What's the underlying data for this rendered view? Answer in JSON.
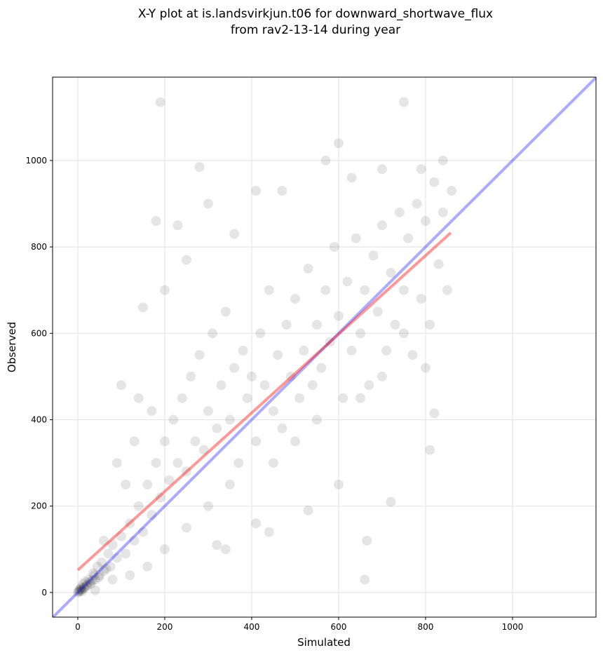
{
  "chart_data": {
    "type": "scatter",
    "title_line1": "X-Y plot at is.landsvirkjun.t06 for downward_shortwave_flux",
    "title_line2": "from rav2-13-14 during year",
    "xlabel": "Simulated",
    "ylabel": "Observed",
    "xlim": [
      -58,
      1192
    ],
    "ylim": [
      -57,
      1193
    ],
    "xticks": [
      0,
      200,
      400,
      600,
      800,
      1000
    ],
    "yticks": [
      0,
      200,
      400,
      600,
      800,
      1000
    ],
    "grid": true,
    "point_color": "#000000",
    "point_alpha": 0.1,
    "identity_line": {
      "color": "#0000ff",
      "alpha": 0.33,
      "from": [
        -58,
        -58
      ],
      "to": [
        1192,
        1192
      ]
    },
    "regression_line": {
      "color": "#ff0000",
      "alpha": 0.4,
      "slope": 0.91,
      "intercept": 52,
      "x_range": [
        0,
        858
      ]
    },
    "points_sample": [
      [
        0,
        0
      ],
      [
        2,
        5
      ],
      [
        5,
        8
      ],
      [
        8,
        12
      ],
      [
        10,
        3
      ],
      [
        12,
        20
      ],
      [
        15,
        10
      ],
      [
        18,
        25
      ],
      [
        20,
        15
      ],
      [
        25,
        30
      ],
      [
        30,
        20
      ],
      [
        35,
        45
      ],
      [
        40,
        30
      ],
      [
        45,
        60
      ],
      [
        50,
        40
      ],
      [
        55,
        70
      ],
      [
        60,
        50
      ],
      [
        70,
        90
      ],
      [
        75,
        60
      ],
      [
        80,
        110
      ],
      [
        90,
        80
      ],
      [
        100,
        130
      ],
      [
        110,
        90
      ],
      [
        120,
        160
      ],
      [
        130,
        120
      ],
      [
        140,
        200
      ],
      [
        150,
        140
      ],
      [
        160,
        250
      ],
      [
        170,
        180
      ],
      [
        180,
        300
      ],
      [
        190,
        220
      ],
      [
        200,
        350
      ],
      [
        210,
        260
      ],
      [
        220,
        400
      ],
      [
        230,
        300
      ],
      [
        240,
        450
      ],
      [
        250,
        280
      ],
      [
        260,
        500
      ],
      [
        270,
        350
      ],
      [
        280,
        550
      ],
      [
        290,
        330
      ],
      [
        300,
        420
      ],
      [
        310,
        600
      ],
      [
        320,
        380
      ],
      [
        330,
        480
      ],
      [
        340,
        650
      ],
      [
        350,
        400
      ],
      [
        360,
        520
      ],
      [
        370,
        300
      ],
      [
        380,
        560
      ],
      [
        390,
        450
      ],
      [
        400,
        500
      ],
      [
        410,
        350
      ],
      [
        420,
        600
      ],
      [
        430,
        480
      ],
      [
        440,
        700
      ],
      [
        450,
        420
      ],
      [
        460,
        550
      ],
      [
        470,
        380
      ],
      [
        480,
        620
      ],
      [
        490,
        500
      ],
      [
        500,
        680
      ],
      [
        510,
        450
      ],
      [
        520,
        560
      ],
      [
        530,
        750
      ],
      [
        540,
        480
      ],
      [
        550,
        620
      ],
      [
        560,
        520
      ],
      [
        570,
        700
      ],
      [
        580,
        580
      ],
      [
        590,
        800
      ],
      [
        600,
        640
      ],
      [
        610,
        450
      ],
      [
        620,
        720
      ],
      [
        630,
        560
      ],
      [
        640,
        820
      ],
      [
        650,
        600
      ],
      [
        660,
        700
      ],
      [
        670,
        480
      ],
      [
        680,
        780
      ],
      [
        690,
        650
      ],
      [
        700,
        850
      ],
      [
        710,
        560
      ],
      [
        720,
        740
      ],
      [
        730,
        620
      ],
      [
        740,
        880
      ],
      [
        750,
        700
      ],
      [
        760,
        820
      ],
      [
        770,
        550
      ],
      [
        780,
        900
      ],
      [
        790,
        680
      ],
      [
        800,
        860
      ],
      [
        810,
        620
      ],
      [
        820,
        950
      ],
      [
        830,
        760
      ],
      [
        840,
        880
      ],
      [
        850,
        700
      ],
      [
        860,
        930
      ],
      [
        190,
        1135
      ],
      [
        750,
        1135
      ],
      [
        280,
        985
      ],
      [
        600,
        1040
      ],
      [
        660,
        30
      ],
      [
        665,
        120
      ],
      [
        810,
        330
      ],
      [
        320,
        110
      ],
      [
        340,
        100
      ],
      [
        100,
        480
      ],
      [
        180,
        860
      ],
      [
        230,
        850
      ],
      [
        410,
        930
      ],
      [
        470,
        930
      ],
      [
        150,
        660
      ],
      [
        600,
        250
      ],
      [
        530,
        190
      ],
      [
        720,
        210
      ],
      [
        410,
        160
      ],
      [
        440,
        140
      ],
      [
        80,
        30
      ],
      [
        60,
        120
      ],
      [
        40,
        5
      ],
      [
        120,
        40
      ],
      [
        160,
        60
      ],
      [
        200,
        100
      ],
      [
        250,
        150
      ],
      [
        300,
        200
      ],
      [
        350,
        250
      ],
      [
        450,
        300
      ],
      [
        500,
        350
      ],
      [
        550,
        400
      ],
      [
        650,
        450
      ],
      [
        700,
        500
      ],
      [
        750,
        600
      ],
      [
        800,
        520
      ],
      [
        820,
        415
      ],
      [
        790,
        980
      ],
      [
        840,
        1000
      ],
      [
        630,
        960
      ],
      [
        700,
        980
      ],
      [
        570,
        1000
      ],
      [
        200,
        700
      ],
      [
        250,
        770
      ],
      [
        300,
        900
      ],
      [
        360,
        830
      ],
      [
        140,
        450
      ],
      [
        170,
        420
      ],
      [
        90,
        300
      ],
      [
        110,
        250
      ],
      [
        130,
        350
      ],
      [
        3,
        2
      ],
      [
        6,
        4
      ],
      [
        9,
        7
      ],
      [
        14,
        12
      ],
      [
        22,
        18
      ],
      [
        28,
        24
      ],
      [
        33,
        28
      ],
      [
        38,
        40
      ],
      [
        48,
        35
      ],
      [
        65,
        55
      ]
    ]
  }
}
